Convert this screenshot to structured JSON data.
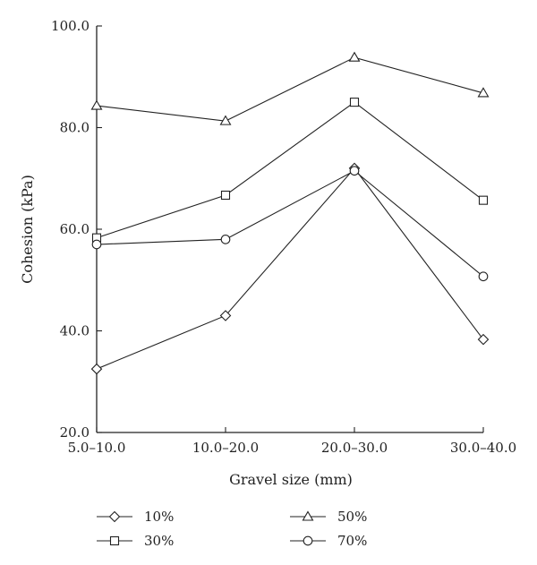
{
  "chart_data": {
    "type": "line",
    "title": "",
    "xlabel": "Gravel size (mm)",
    "ylabel": "Cohesion (kPa)",
    "categories": [
      "5.0–10.0",
      "10.0–20.0",
      "20.0–30.0",
      "30.0–40.0"
    ],
    "ylim": [
      20,
      100
    ],
    "yticks": [
      "20.0",
      "40.0",
      "60.0",
      "80.0",
      "100.0"
    ],
    "grid": false,
    "legend_position": "bottom",
    "series": [
      {
        "name": "10%",
        "marker": "diamond",
        "values": [
          32.5,
          43.0,
          72.0,
          38.3
        ]
      },
      {
        "name": "30%",
        "marker": "square",
        "values": [
          58.3,
          66.7,
          85.0,
          65.7
        ]
      },
      {
        "name": "50%",
        "marker": "triangle",
        "values": [
          84.3,
          81.3,
          93.8,
          86.8
        ]
      },
      {
        "name": "70%",
        "marker": "circle",
        "values": [
          57.0,
          58.0,
          71.5,
          50.7
        ]
      }
    ]
  }
}
